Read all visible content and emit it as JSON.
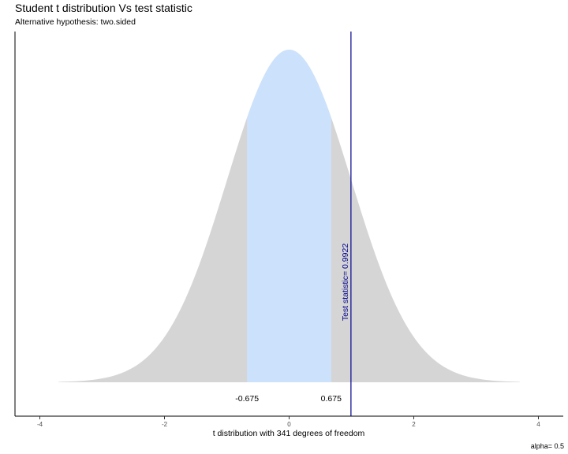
{
  "header": {
    "title": "Student t distribution Vs test statistic",
    "subtitle": "Alternative hypothesis: two.sided"
  },
  "caption": "alpha= 0.5",
  "chart_data": {
    "type": "area",
    "title": "Student t distribution Vs test statistic",
    "subtitle": "Alternative hypothesis: two.sided",
    "xlabel": "t distribution with 341 degrees of freedom",
    "ylabel": "",
    "degrees_of_freedom": 341,
    "xlim": [
      -4.2,
      4.4
    ],
    "x_range_drawn": [
      -3.7,
      3.7
    ],
    "xticks": [
      -4,
      -2,
      0,
      2,
      4
    ],
    "xtick_labels": [
      "-4",
      "-2",
      "0",
      "2",
      "4"
    ],
    "acceptance_region": [
      -0.675,
      0.675
    ],
    "critical_value_labels": [
      "-0.675",
      "0.675"
    ],
    "test_statistic": 0.9922,
    "test_statistic_label": "Test statistic= 0.9922",
    "alpha": 0.5,
    "grid": false,
    "colors": {
      "tail_fill": "#d5d5d5",
      "acceptance_fill": "#cce2fc",
      "statistic_line": "#00008b",
      "axis": "#000000"
    }
  }
}
